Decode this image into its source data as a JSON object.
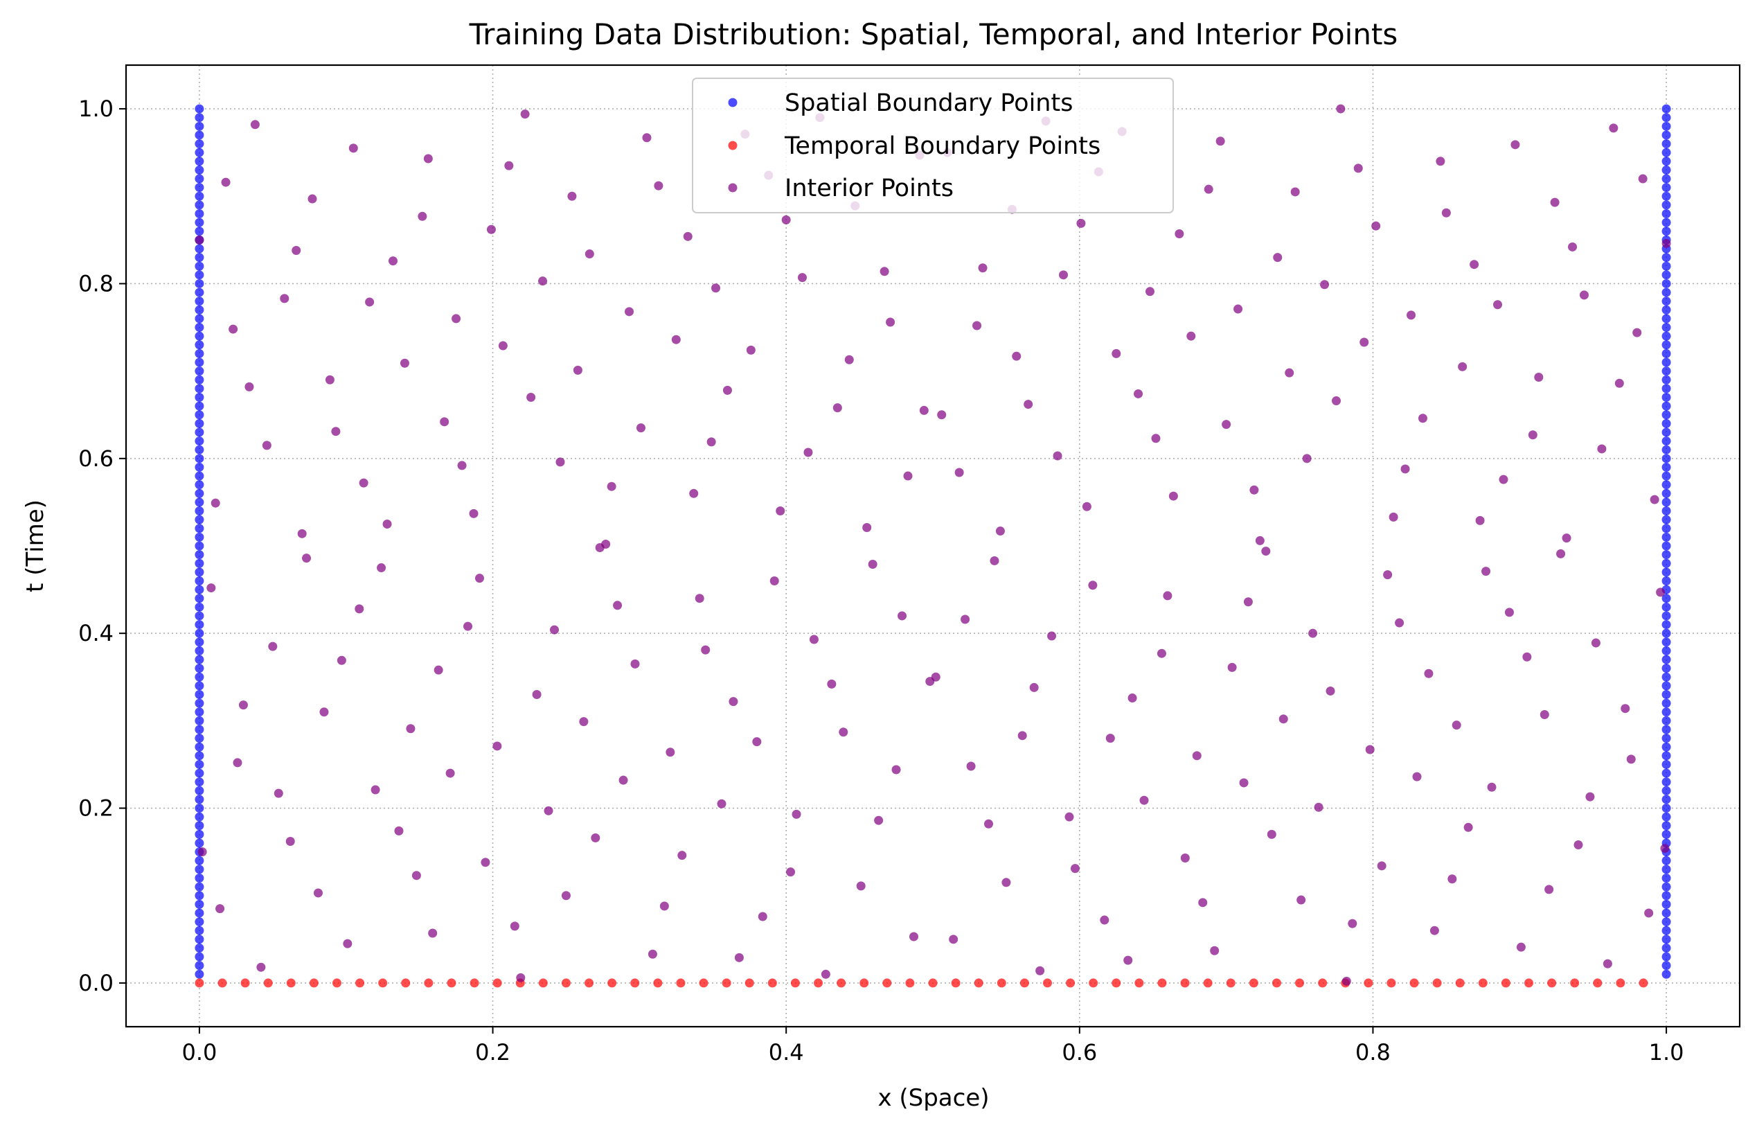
{
  "chart_data": {
    "type": "scatter",
    "title": "Training Data Distribution: Spatial, Temporal, and Interior Points",
    "xlabel": "x (Space)",
    "ylabel": "t (Time)",
    "xlim": [
      -0.05,
      1.05
    ],
    "ylim": [
      -0.05,
      1.05
    ],
    "x_ticks": [
      0.0,
      0.2,
      0.4,
      0.6,
      0.8,
      1.0
    ],
    "x_tick_labels": [
      "0.0",
      "0.2",
      "0.4",
      "0.6",
      "0.8",
      "1.0"
    ],
    "y_ticks": [
      0.0,
      0.2,
      0.4,
      0.6,
      0.8,
      1.0
    ],
    "y_tick_labels": [
      "0.0",
      "0.2",
      "0.4",
      "0.6",
      "0.8",
      "1.0"
    ],
    "grid": true,
    "legend_position": "top-center",
    "series": [
      {
        "name": "Spatial Boundary Points",
        "color": "#0000ff",
        "marker": "circle",
        "description_x": [
          0.0,
          1.0
        ],
        "t_range": [
          0.01,
          1.0
        ],
        "t_step": 0.01
      },
      {
        "name": "Temporal Boundary Points",
        "color": "#ff0000",
        "marker": "circle",
        "t": 0.0,
        "x_range": [
          0.0,
          0.9844
        ],
        "x_step": 0.015625
      },
      {
        "name": "Interior Points",
        "color": "#800080",
        "marker": "circle",
        "points": [
          [
            0.0,
            0.85
          ],
          [
            0.002,
            0.15
          ],
          [
            0.008,
            0.452
          ],
          [
            0.011,
            0.549
          ],
          [
            0.014,
            0.085
          ],
          [
            0.018,
            0.916
          ],
          [
            0.023,
            0.748
          ],
          [
            0.026,
            0.252
          ],
          [
            0.03,
            0.318
          ],
          [
            0.034,
            0.682
          ],
          [
            0.038,
            0.982
          ],
          [
            0.042,
            0.018
          ],
          [
            0.046,
            0.615
          ],
          [
            0.05,
            0.385
          ],
          [
            0.054,
            0.217
          ],
          [
            0.058,
            0.783
          ],
          [
            0.062,
            0.162
          ],
          [
            0.066,
            0.838
          ],
          [
            0.07,
            0.514
          ],
          [
            0.073,
            0.486
          ],
          [
            0.077,
            0.897
          ],
          [
            0.081,
            0.103
          ],
          [
            0.085,
            0.31
          ],
          [
            0.089,
            0.69
          ],
          [
            0.093,
            0.631
          ],
          [
            0.097,
            0.369
          ],
          [
            0.101,
            0.045
          ],
          [
            0.105,
            0.955
          ],
          [
            0.109,
            0.428
          ],
          [
            0.112,
            0.572
          ],
          [
            0.116,
            0.779
          ],
          [
            0.12,
            0.221
          ],
          [
            0.124,
            0.475
          ],
          [
            0.128,
            0.525
          ],
          [
            0.132,
            0.826
          ],
          [
            0.136,
            0.174
          ],
          [
            0.14,
            0.709
          ],
          [
            0.144,
            0.291
          ],
          [
            0.148,
            0.123
          ],
          [
            0.152,
            0.877
          ],
          [
            0.156,
            0.943
          ],
          [
            0.159,
            0.057
          ],
          [
            0.163,
            0.358
          ],
          [
            0.167,
            0.642
          ],
          [
            0.171,
            0.24
          ],
          [
            0.175,
            0.76
          ],
          [
            0.179,
            0.592
          ],
          [
            0.183,
            0.408
          ],
          [
            0.187,
            0.537
          ],
          [
            0.191,
            0.463
          ],
          [
            0.195,
            0.138
          ],
          [
            0.199,
            0.862
          ],
          [
            0.203,
            0.271
          ],
          [
            0.207,
            0.729
          ],
          [
            0.211,
            0.935
          ],
          [
            0.215,
            0.065
          ],
          [
            0.219,
            0.006
          ],
          [
            0.222,
            0.994
          ],
          [
            0.226,
            0.67
          ],
          [
            0.23,
            0.33
          ],
          [
            0.234,
            0.803
          ],
          [
            0.238,
            0.197
          ],
          [
            0.242,
            0.404
          ],
          [
            0.246,
            0.596
          ],
          [
            0.25,
            0.1
          ],
          [
            0.254,
            0.9
          ],
          [
            0.258,
            0.701
          ],
          [
            0.262,
            0.299
          ],
          [
            0.266,
            0.834
          ],
          [
            0.27,
            0.166
          ],
          [
            0.273,
            0.498
          ],
          [
            0.277,
            0.502
          ],
          [
            0.281,
            0.568
          ],
          [
            0.285,
            0.432
          ],
          [
            0.289,
            0.232
          ],
          [
            0.293,
            0.768
          ],
          [
            0.297,
            0.365
          ],
          [
            0.301,
            0.635
          ],
          [
            0.305,
            0.967
          ],
          [
            0.309,
            0.033
          ],
          [
            0.313,
            0.912
          ],
          [
            0.317,
            0.088
          ],
          [
            0.321,
            0.264
          ],
          [
            0.325,
            0.736
          ],
          [
            0.329,
            0.146
          ],
          [
            0.333,
            0.854
          ],
          [
            0.337,
            0.56
          ],
          [
            0.341,
            0.44
          ],
          [
            0.345,
            0.381
          ],
          [
            0.349,
            0.619
          ],
          [
            0.352,
            0.795
          ],
          [
            0.356,
            0.205
          ],
          [
            0.36,
            0.678
          ],
          [
            0.364,
            0.322
          ],
          [
            0.368,
            0.029
          ],
          [
            0.372,
            0.971
          ],
          [
            0.376,
            0.724
          ],
          [
            0.38,
            0.276
          ],
          [
            0.384,
            0.076
          ],
          [
            0.388,
            0.924
          ],
          [
            0.392,
            0.46
          ],
          [
            0.396,
            0.54
          ],
          [
            0.4,
            0.873
          ],
          [
            0.403,
            0.127
          ],
          [
            0.407,
            0.193
          ],
          [
            0.411,
            0.807
          ],
          [
            0.415,
            0.607
          ],
          [
            0.419,
            0.393
          ],
          [
            0.423,
            0.99
          ],
          [
            0.427,
            0.01
          ],
          [
            0.431,
            0.342
          ],
          [
            0.435,
            0.658
          ],
          [
            0.439,
            0.287
          ],
          [
            0.443,
            0.713
          ],
          [
            0.447,
            0.889
          ],
          [
            0.451,
            0.111
          ],
          [
            0.455,
            0.521
          ],
          [
            0.459,
            0.479
          ],
          [
            0.463,
            0.186
          ],
          [
            0.467,
            0.814
          ],
          [
            0.471,
            0.756
          ],
          [
            0.475,
            0.244
          ],
          [
            0.479,
            0.42
          ],
          [
            0.483,
            0.58
          ],
          [
            0.487,
            0.053
          ],
          [
            0.491,
            0.947
          ],
          [
            0.494,
            0.655
          ],
          [
            0.498,
            0.345
          ],
          [
            0.502,
            0.35
          ],
          [
            0.506,
            0.65
          ],
          [
            0.51,
            0.95
          ],
          [
            0.514,
            0.05
          ],
          [
            0.518,
            0.584
          ],
          [
            0.522,
            0.416
          ],
          [
            0.526,
            0.248
          ],
          [
            0.53,
            0.752
          ],
          [
            0.534,
            0.818
          ],
          [
            0.538,
            0.182
          ],
          [
            0.542,
            0.483
          ],
          [
            0.546,
            0.517
          ],
          [
            0.55,
            0.115
          ],
          [
            0.554,
            0.885
          ],
          [
            0.557,
            0.717
          ],
          [
            0.561,
            0.283
          ],
          [
            0.565,
            0.662
          ],
          [
            0.569,
            0.338
          ],
          [
            0.573,
            0.014
          ],
          [
            0.577,
            0.986
          ],
          [
            0.581,
            0.397
          ],
          [
            0.585,
            0.603
          ],
          [
            0.589,
            0.81
          ],
          [
            0.593,
            0.19
          ],
          [
            0.597,
            0.131
          ],
          [
            0.601,
            0.869
          ],
          [
            0.605,
            0.545
          ],
          [
            0.609,
            0.455
          ],
          [
            0.613,
            0.928
          ],
          [
            0.617,
            0.072
          ],
          [
            0.621,
            0.28
          ],
          [
            0.625,
            0.72
          ],
          [
            0.629,
            0.974
          ],
          [
            0.633,
            0.026
          ],
          [
            0.636,
            0.326
          ],
          [
            0.64,
            0.674
          ],
          [
            0.644,
            0.209
          ],
          [
            0.648,
            0.791
          ],
          [
            0.652,
            0.623
          ],
          [
            0.656,
            0.377
          ],
          [
            0.66,
            0.443
          ],
          [
            0.664,
            0.557
          ],
          [
            0.668,
            0.857
          ],
          [
            0.672,
            0.143
          ],
          [
            0.676,
            0.74
          ],
          [
            0.68,
            0.26
          ],
          [
            0.684,
            0.092
          ],
          [
            0.688,
            0.908
          ],
          [
            0.692,
            0.037
          ],
          [
            0.696,
            0.963
          ],
          [
            0.7,
            0.639
          ],
          [
            0.704,
            0.361
          ],
          [
            0.708,
            0.771
          ],
          [
            0.712,
            0.229
          ],
          [
            0.715,
            0.436
          ],
          [
            0.719,
            0.564
          ],
          [
            0.723,
            0.506
          ],
          [
            0.727,
            0.494
          ],
          [
            0.731,
            0.17
          ],
          [
            0.735,
            0.83
          ],
          [
            0.739,
            0.302
          ],
          [
            0.743,
            0.698
          ],
          [
            0.747,
            0.905
          ],
          [
            0.751,
            0.095
          ],
          [
            0.755,
            0.6
          ],
          [
            0.759,
            0.4
          ],
          [
            0.763,
            0.201
          ],
          [
            0.767,
            0.799
          ],
          [
            0.771,
            0.334
          ],
          [
            0.775,
            0.666
          ],
          [
            0.778,
            1.0
          ],
          [
            0.782,
            0.002
          ],
          [
            0.786,
            0.068
          ],
          [
            0.79,
            0.932
          ],
          [
            0.794,
            0.733
          ],
          [
            0.798,
            0.267
          ],
          [
            0.802,
            0.866
          ],
          [
            0.806,
            0.134
          ],
          [
            0.81,
            0.467
          ],
          [
            0.814,
            0.533
          ],
          [
            0.818,
            0.412
          ],
          [
            0.822,
            0.588
          ],
          [
            0.826,
            0.764
          ],
          [
            0.83,
            0.236
          ],
          [
            0.834,
            0.646
          ],
          [
            0.838,
            0.354
          ],
          [
            0.842,
            0.06
          ],
          [
            0.846,
            0.94
          ],
          [
            0.85,
            0.881
          ],
          [
            0.854,
            0.119
          ],
          [
            0.857,
            0.295
          ],
          [
            0.861,
            0.705
          ],
          [
            0.865,
            0.178
          ],
          [
            0.869,
            0.822
          ],
          [
            0.873,
            0.529
          ],
          [
            0.877,
            0.471
          ],
          [
            0.881,
            0.224
          ],
          [
            0.885,
            0.776
          ],
          [
            0.889,
            0.576
          ],
          [
            0.893,
            0.424
          ],
          [
            0.897,
            0.959
          ],
          [
            0.901,
            0.041
          ],
          [
            0.905,
            0.373
          ],
          [
            0.909,
            0.627
          ],
          [
            0.913,
            0.693
          ],
          [
            0.917,
            0.307
          ],
          [
            0.92,
            0.107
          ],
          [
            0.924,
            0.893
          ],
          [
            0.928,
            0.491
          ],
          [
            0.932,
            0.509
          ],
          [
            0.936,
            0.842
          ],
          [
            0.94,
            0.158
          ],
          [
            0.944,
            0.787
          ],
          [
            0.948,
            0.213
          ],
          [
            0.952,
            0.389
          ],
          [
            0.956,
            0.611
          ],
          [
            0.96,
            0.022
          ],
          [
            0.964,
            0.978
          ],
          [
            0.968,
            0.686
          ],
          [
            0.972,
            0.314
          ],
          [
            0.976,
            0.256
          ],
          [
            0.98,
            0.744
          ],
          [
            0.984,
            0.92
          ],
          [
            0.988,
            0.08
          ],
          [
            0.992,
            0.553
          ],
          [
            0.996,
            0.447
          ],
          [
            0.999,
            0.154
          ],
          [
            1.0,
            0.846
          ]
        ]
      }
    ]
  }
}
